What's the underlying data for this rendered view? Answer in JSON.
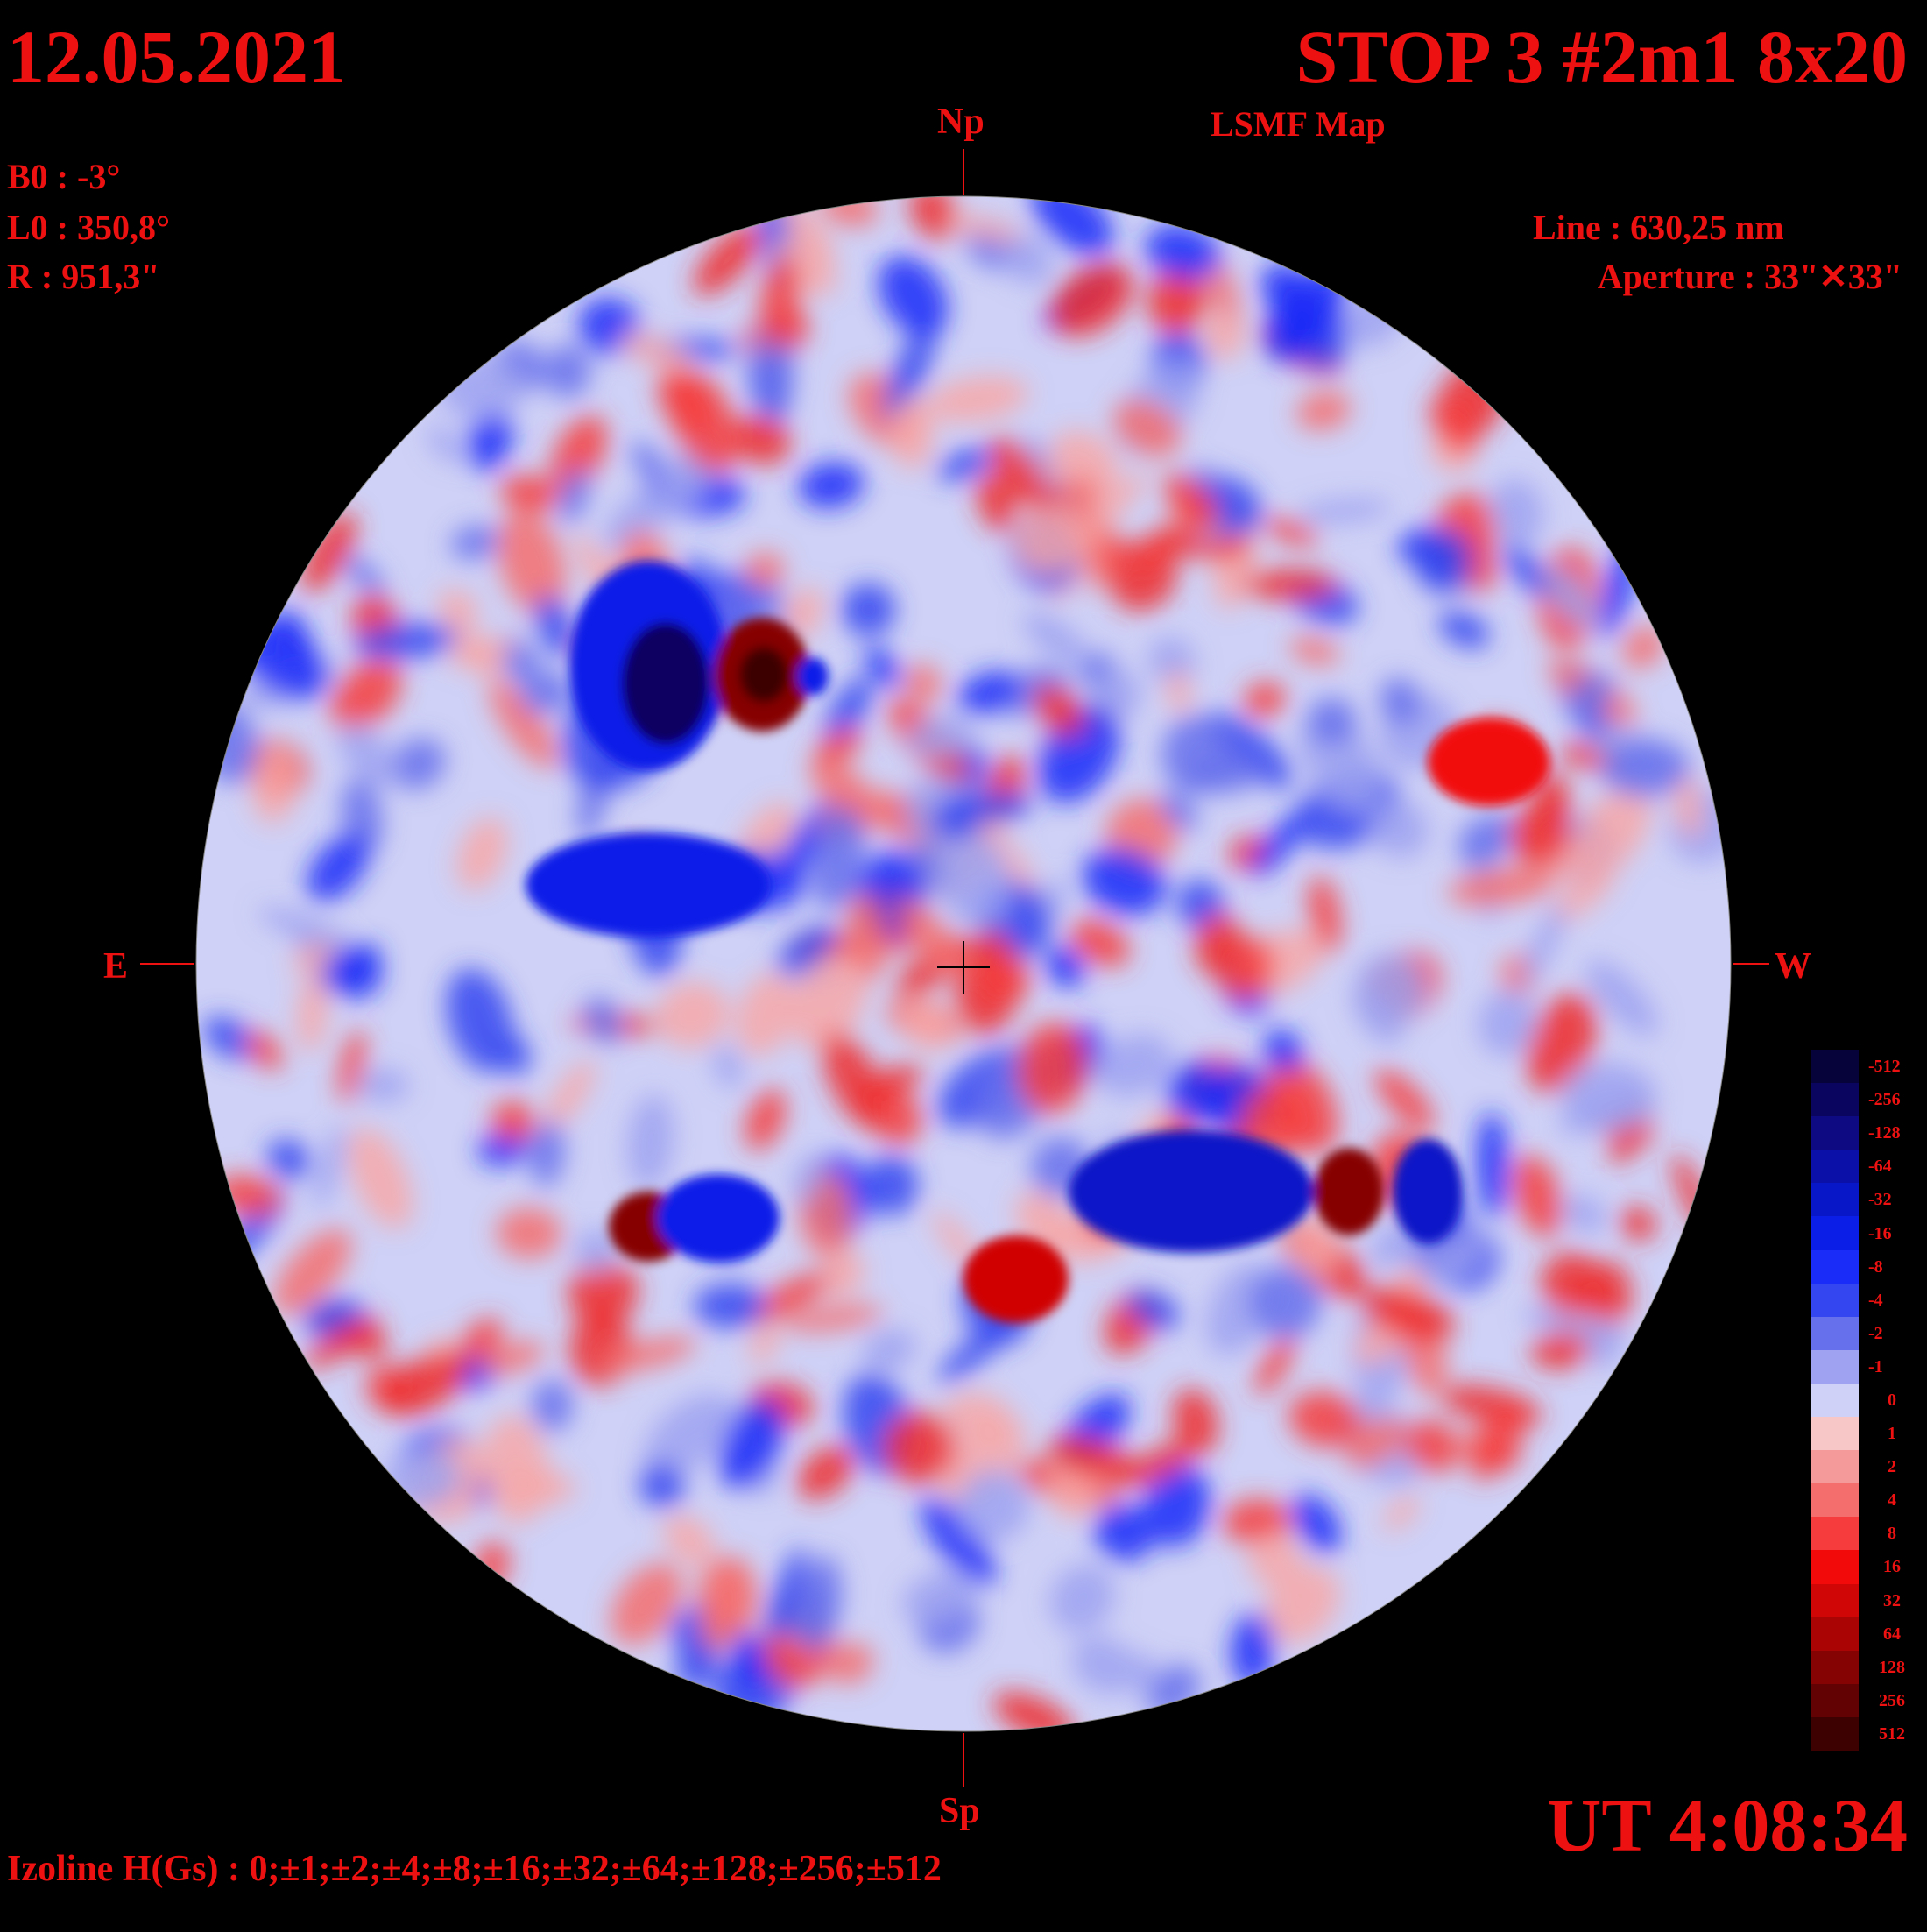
{
  "header": {
    "date": "12.05.2021",
    "observation": "STOP 3 #2m1 8x20",
    "map_type": "LSMF  Map"
  },
  "params": {
    "b0": "B0 : -3°",
    "l0": "L0 : 350,8°",
    "r": "R  : 951,3\""
  },
  "instrument": {
    "line": "Line :  630,25 nm",
    "aperture": "Aperture : 33\"✕33\""
  },
  "directions": {
    "north": "Np",
    "south": "Sp",
    "east": "E",
    "west": "W"
  },
  "time": "UT 4:08:34",
  "izoline": "Izoline H(Gs) : 0;±1;±2;±4;±8;±16;±32;±64;±128;±256;±512",
  "legend": {
    "labels": [
      "-512",
      "-256",
      "-128",
      "-64",
      "-32",
      "-16",
      "-8",
      "-4",
      "-2",
      "-1",
      "0",
      "1",
      "2",
      "4",
      "8",
      "16",
      "32",
      "64",
      "128",
      "256",
      "512"
    ],
    "colors": [
      "#06033a",
      "#0a0660",
      "#0d0a82",
      "#0a10a8",
      "#0818c8",
      "#0a1ee8",
      "#1a2cf8",
      "#3446f0",
      "#6670ec",
      "#9ea2f0",
      "#cfd1f6",
      "#f7c6c6",
      "#f59a9a",
      "#f56e6e",
      "#f63c3c",
      "#f20a0a",
      "#d00606",
      "#aa0404",
      "#860303",
      "#620202",
      "#3e0101"
    ]
  },
  "colors": {
    "text": "#ee1111",
    "background": "#000000",
    "izoline": "#ffffff"
  }
}
